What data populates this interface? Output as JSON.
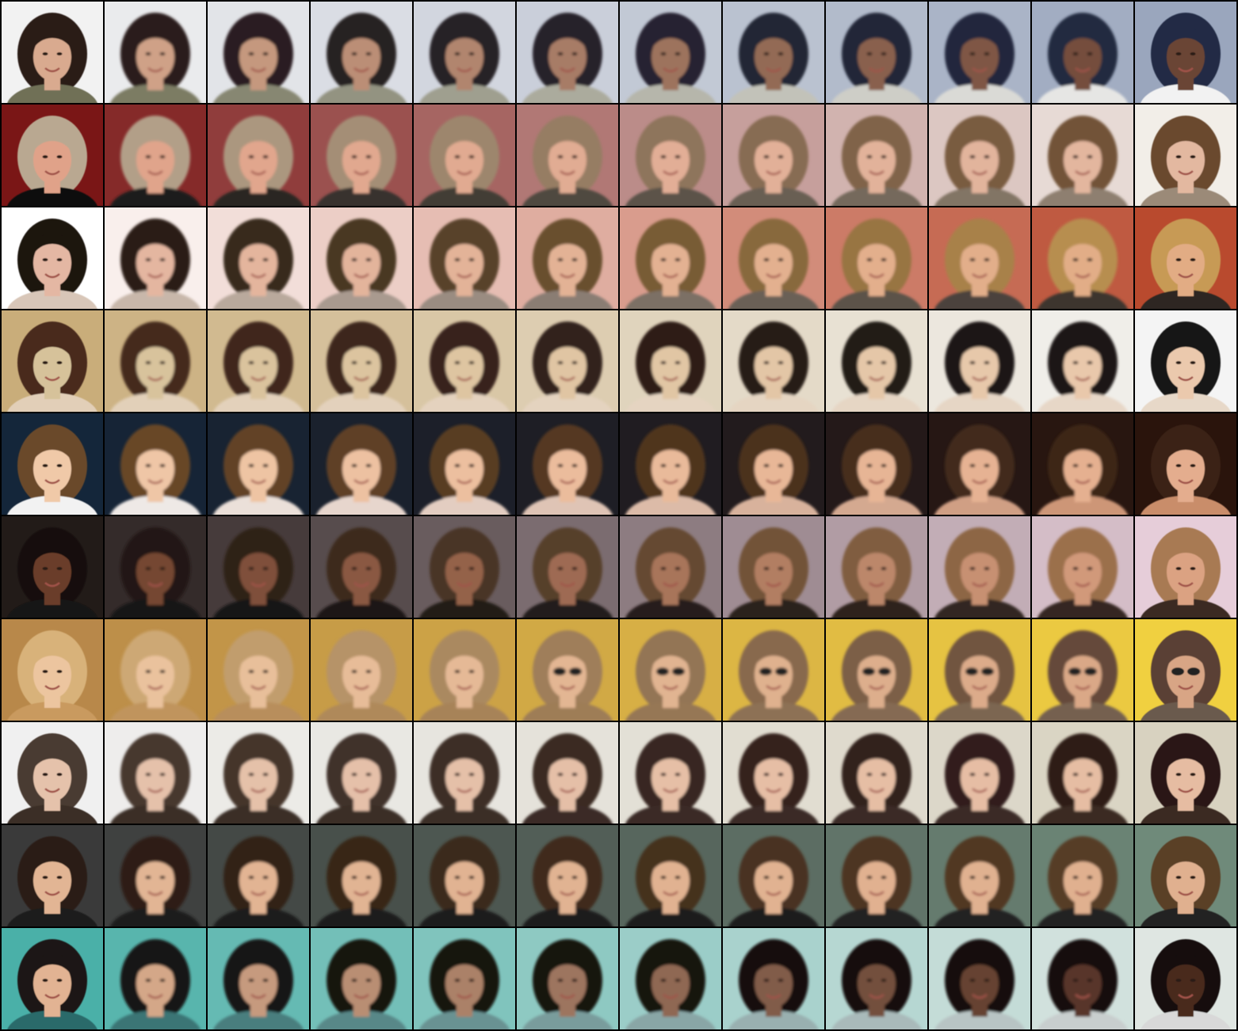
{
  "grid": {
    "rows": 10,
    "columns": 12,
    "background": "#000000"
  },
  "rows": [
    {
      "bg_start": "#f2f2f2",
      "bg_end": "#9aa6bd",
      "skin_start": "#d9aa8f",
      "skin_end": "#6b4534",
      "hair_start": "#2b1d18",
      "hair_end": "#202a45",
      "cloth_start": "#6f6f56",
      "cloth_end": "#f2f2f2",
      "glasses": false
    },
    {
      "bg_start": "#7a1616",
      "bg_end": "#f2eee8",
      "skin_start": "#e0a289",
      "skin_end": "#e3b8a0",
      "hair_start": "#b9a891",
      "hair_end": "#6b4a2e",
      "cloth_start": "#111111",
      "cloth_end": "#9b8a78",
      "glasses": false
    },
    {
      "bg_start": "#ffffff",
      "bg_end": "#b94a2e",
      "skin_start": "#e4b7a3",
      "skin_end": "#e2ac84",
      "hair_start": "#1a1210",
      "hair_end": "#c79a55",
      "cloth_start": "#d8c6b8",
      "cloth_end": "#2d2620",
      "glasses": false
    },
    {
      "bg_start": "#c9ad7a",
      "bg_end": "#f4f4f4",
      "skin_start": "#d6c29a",
      "skin_end": "#ebc9ad",
      "hair_start": "#4a2b1e",
      "hair_end": "#151515",
      "cloth_start": "#e2cfb8",
      "cloth_end": "#e7d8c8",
      "glasses": false
    },
    {
      "bg_start": "#14263a",
      "bg_end": "#2a140c",
      "skin_start": "#f0c9a8",
      "skin_end": "#e4ad8e",
      "hair_start": "#6b4a2a",
      "hair_end": "#3a2416",
      "cloth_start": "#f2f2f2",
      "cloth_end": "#c98d6b",
      "glasses": false
    },
    {
      "bg_start": "#221b18",
      "bg_end": "#e6cdd9",
      "skin_start": "#6b3e2a",
      "skin_end": "#dba282",
      "hair_start": "#140e0c",
      "hair_end": "#a87a52",
      "cloth_start": "#121212",
      "cloth_end": "#3a2a24",
      "glasses": false
    },
    {
      "bg_start": "#b8884a",
      "bg_end": "#f0d040",
      "skin_start": "#ecc59f",
      "skin_end": "#d8a585",
      "hair_start": "#d8b27a",
      "hair_end": "#5a4034",
      "cloth_start": "#c99a5e",
      "cloth_end": "#6b5a4e",
      "glasses": true
    },
    {
      "bg_start": "#f0f0f0",
      "bg_end": "#d8d2c0",
      "skin_start": "#e5c2ab",
      "skin_end": "#e6bca2",
      "hair_start": "#4a3a30",
      "hair_end": "#2a1816",
      "cloth_start": "#3a2e28",
      "cloth_end": "#3a2a24",
      "glasses": false
    },
    {
      "bg_start": "#3a3a3a",
      "bg_end": "#6f8a7a",
      "skin_start": "#e2b594",
      "skin_end": "#e0b08f",
      "hair_start": "#2a1c14",
      "hair_end": "#5a4028",
      "cloth_start": "#1a1a1a",
      "cloth_end": "#222222",
      "glasses": false
    },
    {
      "bg_start": "#4ab0a8",
      "bg_end": "#dfe6e2",
      "skin_start": "#e2b393",
      "skin_end": "#4a2a1e",
      "hair_start": "#1a1412",
      "hair_end": "#121010",
      "cloth_start": "#2a6a6a",
      "cloth_end": "#d8d8d8",
      "glasses": false
    }
  ]
}
